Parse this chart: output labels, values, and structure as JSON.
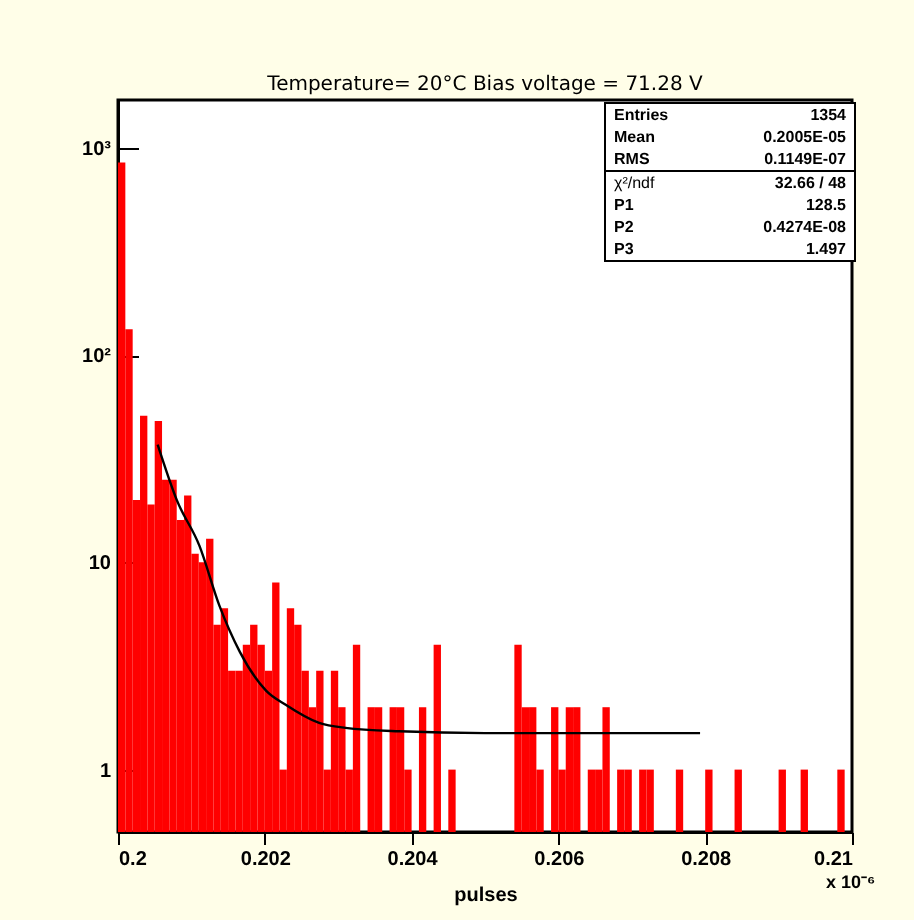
{
  "chart_data": {
    "type": "histogram",
    "title": "Temperature= 20°C   Bias voltage = 71.28 V",
    "xlabel": "pulses",
    "bins": [
      0.2,
      0.2001,
      0.2002,
      0.2003,
      0.2004,
      0.2005,
      0.2006,
      0.2007,
      0.2008,
      0.2009,
      0.201,
      0.2011,
      0.2012,
      0.2013,
      0.2014,
      0.2015,
      0.2016,
      0.2017,
      0.2018,
      0.2019,
      0.202,
      0.2021,
      0.2022,
      0.2023,
      0.2024,
      0.2025,
      0.2026,
      0.2027,
      0.2028,
      0.2029,
      0.203,
      0.2031,
      0.2032,
      0.2033,
      0.2034,
      0.2035,
      0.2036,
      0.2037,
      0.2038,
      0.2039,
      0.204,
      0.2041,
      0.2042,
      0.2043,
      0.2044,
      0.2045,
      0.2046,
      0.2047,
      0.2048,
      0.2049,
      0.205,
      0.2051,
      0.2052,
      0.2053,
      0.2054,
      0.2055,
      0.2056,
      0.2057,
      0.2058,
      0.2059,
      0.206,
      0.2061,
      0.2062,
      0.2063,
      0.2064,
      0.2065,
      0.2066,
      0.2067,
      0.2068,
      0.2069,
      0.207,
      0.2071,
      0.2072,
      0.2073,
      0.2074,
      0.2075,
      0.2076,
      0.2077,
      0.2078,
      0.2079,
      0.208,
      0.2081,
      0.2082,
      0.2083,
      0.2084,
      0.2085,
      0.2086,
      0.2087,
      0.2088,
      0.2089,
      0.209,
      0.2091,
      0.2092,
      0.2093,
      0.2094,
      0.2095,
      0.2096,
      0.2097,
      0.2098,
      0.2099,
      0.21
    ],
    "values": [
      850,
      133,
      20,
      51,
      19,
      48,
      25,
      25,
      16,
      21,
      11,
      10,
      13,
      5,
      6,
      3,
      3,
      4,
      5,
      4,
      3,
      8,
      1,
      6,
      5,
      3,
      2,
      3,
      1,
      3,
      2,
      1,
      4,
      null,
      2,
      2,
      null,
      2,
      2,
      1,
      null,
      2,
      null,
      4,
      null,
      1,
      null,
      null,
      null,
      null,
      null,
      null,
      null,
      null,
      4,
      2,
      2,
      1,
      null,
      2,
      1,
      2,
      2,
      null,
      1,
      1,
      2,
      null,
      1,
      1,
      null,
      1,
      1,
      null,
      null,
      null,
      1,
      null,
      null,
      null,
      1,
      null,
      null,
      null,
      1,
      null,
      null,
      null,
      null,
      null,
      1,
      null,
      null,
      1,
      null,
      null,
      null,
      null,
      1,
      null
    ],
    "color": "#ff0000",
    "series": [
      {
        "type": "line",
        "color": "#000000",
        "x": [
          0.20054,
          0.2008,
          0.20111,
          0.20138,
          0.20166,
          0.20202,
          0.20229,
          0.20274,
          0.2031,
          0.20383,
          0.205,
          0.20793
        ],
        "values": [
          37,
          20,
          12,
          6.2,
          3.7,
          2.4,
          2.05,
          1.68,
          1.59,
          1.53,
          1.5,
          1.5
        ]
      }
    ],
    "xlim": [
      0.2,
      0.21
    ],
    "xticks": [
      0.2,
      0.202,
      0.204,
      0.206,
      0.208,
      0.21
    ],
    "ylim": [
      0.5,
      1700
    ],
    "log": "y",
    "yticks": [
      1,
      10,
      {
        "value": 100,
        "label": "10²"
      },
      {
        "value": 1000,
        "label": "10³"
      }
    ],
    "grid": false,
    "annotations": [
      "Entries 1354",
      "Mean 0.2005E-05",
      "RMS 0.1149E-07",
      "χ²/ndf 32.66 / 48",
      "P1 128.5",
      "P2 0.4274E-08",
      "P3 1.497",
      "x 10⁻⁶"
    ]
  }
}
